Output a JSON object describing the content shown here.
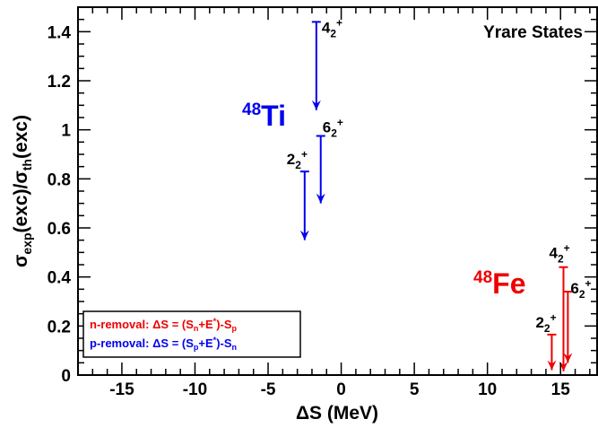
{
  "chart_data": {
    "type": "arrow-plot",
    "xlabel": "ΔS (MeV)",
    "ylabel": "σexp(exc)/σth(exc)",
    "xlim": [
      -18,
      17.5
    ],
    "ylim": [
      0,
      1.5
    ],
    "xticks": [
      -15,
      -10,
      -5,
      0,
      5,
      10,
      15
    ],
    "xtick_labels": [
      "-15",
      "-10",
      "-5",
      "0",
      "5",
      "10",
      "15"
    ],
    "yticks": [
      0,
      0.2,
      0.4,
      0.6,
      0.8,
      1,
      1.2,
      1.4
    ],
    "ytick_labels": [
      "0",
      "0.2",
      "0.4",
      "0.6",
      "0.8",
      "1",
      "1.2",
      "1.4"
    ],
    "title": "Yrare States",
    "series": [
      {
        "nucleus_mass": "48",
        "nucleus_symbol": "Ti",
        "color": "#0000ee",
        "points": [
          {
            "state": "4",
            "sub": "2",
            "sup": "+",
            "x": -1.7,
            "y_top": 1.44,
            "y_tip": 1.08
          },
          {
            "state": "6",
            "sub": "2",
            "sup": "+",
            "x": -1.4,
            "y_top": 0.975,
            "y_tip": 0.7
          },
          {
            "state": "2",
            "sub": "2",
            "sup": "+",
            "x": -2.5,
            "y_top": 0.83,
            "y_tip": 0.55
          }
        ]
      },
      {
        "nucleus_mass": "48",
        "nucleus_symbol": "Fe",
        "color": "#ee0000",
        "points": [
          {
            "state": "4",
            "sub": "2",
            "sup": "+",
            "x": 15.2,
            "y_top": 0.44,
            "y_tip": 0.015
          },
          {
            "state": "6",
            "sub": "2",
            "sup": "+",
            "x": 15.5,
            "y_top": 0.34,
            "y_tip": 0.05
          },
          {
            "state": "2",
            "sub": "2",
            "sup": "+",
            "x": 14.4,
            "y_top": 0.165,
            "y_tip": 0.02
          }
        ]
      }
    ],
    "legend": [
      {
        "prefix": "n-removal: ΔS = (S",
        "s1": "n",
        "mid1": "+E",
        "sup": "*",
        "mid2": ")-S",
        "s2": "p",
        "color": "#ee0000"
      },
      {
        "prefix": "p-removal: ΔS = (S",
        "s1": "p",
        "mid1": "+E",
        "sup": "*",
        "mid2": ")-S",
        "s2": "n",
        "color": "#0000ee"
      }
    ],
    "legend_position": "bottom-left"
  }
}
